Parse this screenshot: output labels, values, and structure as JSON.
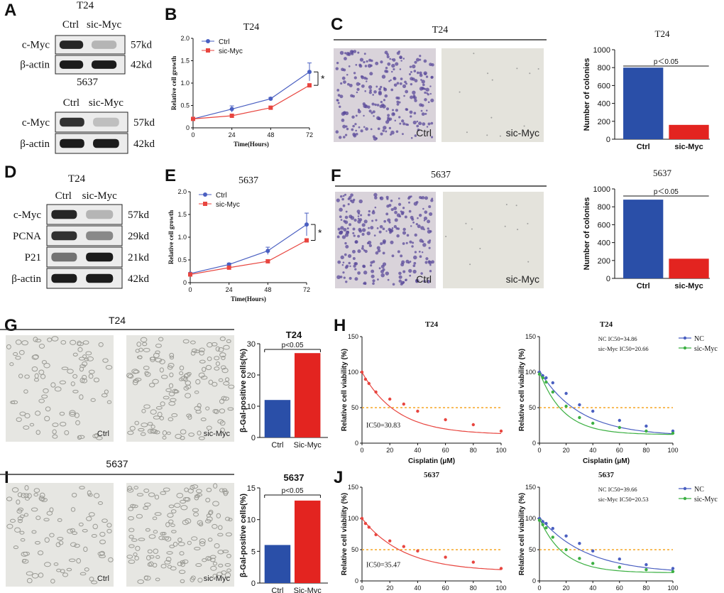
{
  "panels": {
    "A": {
      "letter": "A",
      "blot1": {
        "title": "T24",
        "lanes": [
          "Ctrl",
          "sic-Myc"
        ],
        "rows": [
          {
            "label": "c-Myc",
            "size": "57kd",
            "ctrl": 0.9,
            "sic": 0.25
          },
          {
            "label": "β-actin",
            "size": "42kd",
            "ctrl": 0.95,
            "sic": 0.95
          }
        ]
      },
      "blot2": {
        "title": "5637",
        "lanes": [
          "Ctrl",
          "sic-Myc"
        ],
        "rows": [
          {
            "label": "c-Myc",
            "size": "57kd",
            "ctrl": 0.85,
            "sic": 0.2
          },
          {
            "label": "β-actin",
            "size": "42kd",
            "ctrl": 0.95,
            "sic": 0.95
          }
        ]
      }
    },
    "B": {
      "letter": "B"
    },
    "C": {
      "letter": "C",
      "images": [
        {
          "title": "T24",
          "left_label": "Ctrl",
          "right_label": "sic-Myc"
        }
      ]
    },
    "D": {
      "letter": "D",
      "blot": {
        "title": "T24",
        "lanes": [
          "Ctrl",
          "sic-Myc"
        ],
        "rows": [
          {
            "label": "c-Myc",
            "size": "57kd",
            "ctrl": 0.9,
            "sic": 0.25
          },
          {
            "label": "PCNA",
            "size": "29kd",
            "ctrl": 0.85,
            "sic": 0.45
          },
          {
            "label": "P21",
            "size": "21kd",
            "ctrl": 0.55,
            "sic": 0.95
          },
          {
            "label": "β-actin",
            "size": "42kd",
            "ctrl": 0.95,
            "sic": 0.95
          }
        ]
      }
    },
    "E": {
      "letter": "E"
    },
    "F": {
      "letter": "F",
      "images": [
        {
          "title": "5637",
          "left_label": "Ctrl",
          "right_label": "sic-Myc"
        }
      ]
    },
    "G": {
      "letter": "G",
      "images": [
        {
          "title": "T24",
          "left_label": "Ctrl",
          "right_label": "sic-Myc"
        }
      ]
    },
    "H": {
      "letter": "H"
    },
    "I": {
      "letter": "I",
      "images": [
        {
          "title": "5637",
          "left_label": "Ctrl",
          "right_label": "sic-Myc"
        }
      ]
    },
    "J": {
      "letter": "J"
    }
  },
  "colors": {
    "blue": "#2a4fa8",
    "red": "#e32420",
    "line_blue": "#4a5fc1",
    "line_red": "#e8453f",
    "line_green": "#3cb043",
    "threshold": "#f5a623",
    "colony": "#5a4a9a"
  },
  "chart_data": [
    {
      "id": "B",
      "type": "line",
      "title": "T24",
      "xlabel": "Time(Hours)",
      "ylabel": "Relative cell growth",
      "x": [
        0,
        24,
        48,
        72
      ],
      "xlim": [
        0,
        72
      ],
      "ylim": [
        0,
        2.0
      ],
      "xticks": [
        "0",
        "24",
        "48",
        "72"
      ],
      "yticks": [
        "0",
        "0.5",
        "1.0",
        "1.5",
        "2.0"
      ],
      "series": [
        {
          "name": "Ctrl",
          "values": [
            0.2,
            0.42,
            0.65,
            1.25
          ],
          "err": [
            0.03,
            0.07,
            0.03,
            0.2
          ]
        },
        {
          "name": "sic-Myc",
          "values": [
            0.2,
            0.27,
            0.45,
            0.95
          ],
          "err": [
            0.02,
            0.03,
            0.03,
            0.03
          ]
        }
      ],
      "annotation": "*",
      "legend": "top-left"
    },
    {
      "id": "E",
      "type": "line",
      "title": "5637",
      "xlabel": "Time(Hours)",
      "ylabel": "Relative cell growth",
      "x": [
        0,
        24,
        48,
        72
      ],
      "xlim": [
        0,
        72
      ],
      "ylim": [
        0,
        2.0
      ],
      "xticks": [
        "0",
        "24",
        "48",
        "72"
      ],
      "yticks": [
        "0",
        "0.5",
        "1.0",
        "1.5",
        "2.0"
      ],
      "series": [
        {
          "name": "Ctrl",
          "values": [
            0.2,
            0.4,
            0.7,
            1.28
          ],
          "err": [
            0.02,
            0.03,
            0.08,
            0.25
          ]
        },
        {
          "name": "sic-Myc",
          "values": [
            0.18,
            0.33,
            0.47,
            0.93
          ],
          "err": [
            0.02,
            0.03,
            0.03,
            0.03
          ]
        }
      ],
      "annotation": "*",
      "legend": "top-left"
    },
    {
      "id": "C-bar",
      "type": "bar",
      "title": "T24",
      "ylabel": "Number of colonies",
      "categories": [
        "Ctrl",
        "sic-Myc"
      ],
      "values": [
        800,
        160
      ],
      "ylim": [
        0,
        1000
      ],
      "yticks": [
        "0",
        "200",
        "400",
        "600",
        "800",
        "1000"
      ],
      "annotation": "p＜0.05"
    },
    {
      "id": "F-bar",
      "type": "bar",
      "title": "5637",
      "ylabel": "Number of colonies",
      "categories": [
        "Ctrl",
        "sic-Myc"
      ],
      "values": [
        880,
        220
      ],
      "ylim": [
        0,
        1000
      ],
      "yticks": [
        "0",
        "200",
        "400",
        "600",
        "800",
        "1000"
      ],
      "annotation": "p＜0.05"
    },
    {
      "id": "G-bar",
      "type": "bar",
      "title": "T24",
      "ylabel": "β-Gal-positive cells(%)",
      "categories": [
        "Ctrl",
        "Sic-Myc"
      ],
      "values": [
        12,
        27
      ],
      "ylim": [
        0,
        30
      ],
      "yticks": [
        "0",
        "10",
        "20",
        "30"
      ],
      "annotation": "p<0.05"
    },
    {
      "id": "I-bar",
      "type": "bar",
      "title": "5637",
      "ylabel": "β-Gal-positive cells(%)",
      "categories": [
        "Ctrl",
        "Sic-Myc"
      ],
      "values": [
        6,
        13
      ],
      "ylim": [
        0,
        15
      ],
      "yticks": [
        "0",
        "5",
        "10",
        "15"
      ],
      "annotation": "p<0.05"
    },
    {
      "id": "H1",
      "type": "scatter",
      "title": "T24",
      "xlabel": "Cisplatin (μM)",
      "ylabel": "Relative cell viability (%)",
      "xlim": [
        0,
        100
      ],
      "ylim": [
        0,
        150
      ],
      "xticks": [
        "0",
        "20",
        "40",
        "60",
        "80",
        "100"
      ],
      "yticks": [
        "0",
        "50",
        "100",
        "150"
      ],
      "threshold": 50,
      "annotation": "IC50=30.83",
      "series": [
        {
          "name": "",
          "x": [
            0,
            2.5,
            5,
            10,
            20,
            30,
            40,
            60,
            80,
            100
          ],
          "values": [
            100,
            90,
            84,
            72,
            62,
            55,
            45,
            33,
            26,
            17
          ],
          "fit": [
            100,
            25,
            12
          ]
        }
      ]
    },
    {
      "id": "H2",
      "type": "scatter",
      "title": "T24",
      "xlabel": "Cisplatin (μM)",
      "ylabel": "Relative cell viability (%)",
      "xlim": [
        0,
        100
      ],
      "ylim": [
        0,
        150
      ],
      "xticks": [
        "0",
        "20",
        "40",
        "60",
        "80",
        "100"
      ],
      "yticks": [
        "0",
        "50",
        "100",
        "150"
      ],
      "threshold": 50,
      "annotations": [
        "NC IC50=34.86",
        "sic-Myc IC50=20.66"
      ],
      "legend": "top-right",
      "series": [
        {
          "name": "NC",
          "x": [
            0,
            2.5,
            5,
            10,
            20,
            30,
            40,
            60,
            80,
            100
          ],
          "values": [
            100,
            95,
            92,
            85,
            70,
            54,
            45,
            32,
            24,
            17
          ],
          "fit": [
            102,
            30,
            10
          ]
        },
        {
          "name": "sic-Myc",
          "x": [
            0,
            2.5,
            5,
            10,
            20,
            30,
            40,
            60,
            80,
            100
          ],
          "values": [
            97,
            92,
            86,
            72,
            52,
            36,
            28,
            22,
            17,
            14
          ],
          "fit": [
            100,
            18,
            12
          ]
        }
      ]
    },
    {
      "id": "J1",
      "type": "scatter",
      "title": "5637",
      "xlabel": "Cisplatin (μM)",
      "ylabel": "Relative cell viability (%)",
      "xlim": [
        0,
        100
      ],
      "ylim": [
        0,
        150
      ],
      "xticks": [
        "0",
        "20",
        "40",
        "60",
        "80",
        "100"
      ],
      "yticks": [
        "0",
        "50",
        "100",
        "150"
      ],
      "threshold": 50,
      "annotation": "IC50=35.47",
      "series": [
        {
          "name": "",
          "x": [
            0,
            2.5,
            5,
            10,
            20,
            30,
            40,
            60,
            80,
            100
          ],
          "values": [
            100,
            92,
            86,
            74,
            64,
            55,
            48,
            38,
            30,
            20
          ],
          "fit": [
            100,
            30,
            15
          ]
        }
      ]
    },
    {
      "id": "J2",
      "type": "scatter",
      "title": "5637",
      "xlabel": "Cisplatin (μM)",
      "ylabel": "Relative cell viability (%)",
      "xlim": [
        0,
        100
      ],
      "ylim": [
        0,
        150
      ],
      "xticks": [
        "0",
        "20",
        "40",
        "60",
        "80",
        "100"
      ],
      "yticks": [
        "0",
        "50",
        "100",
        "150"
      ],
      "threshold": 50,
      "annotations": [
        "NC IC50=39.66",
        "sic-Myc IC50=20.53"
      ],
      "legend": "top-right",
      "series": [
        {
          "name": "NC",
          "x": [
            0,
            2.5,
            5,
            10,
            20,
            30,
            40,
            60,
            80,
            100
          ],
          "values": [
            100,
            95,
            92,
            84,
            72,
            60,
            48,
            35,
            26,
            20
          ],
          "fit": [
            102,
            35,
            12
          ]
        },
        {
          "name": "sic-Myc",
          "x": [
            0,
            2.5,
            5,
            10,
            20,
            30,
            40,
            60,
            80,
            100
          ],
          "values": [
            97,
            90,
            85,
            70,
            50,
            36,
            28,
            22,
            18,
            15
          ],
          "fit": [
            100,
            18,
            13
          ]
        }
      ]
    }
  ]
}
